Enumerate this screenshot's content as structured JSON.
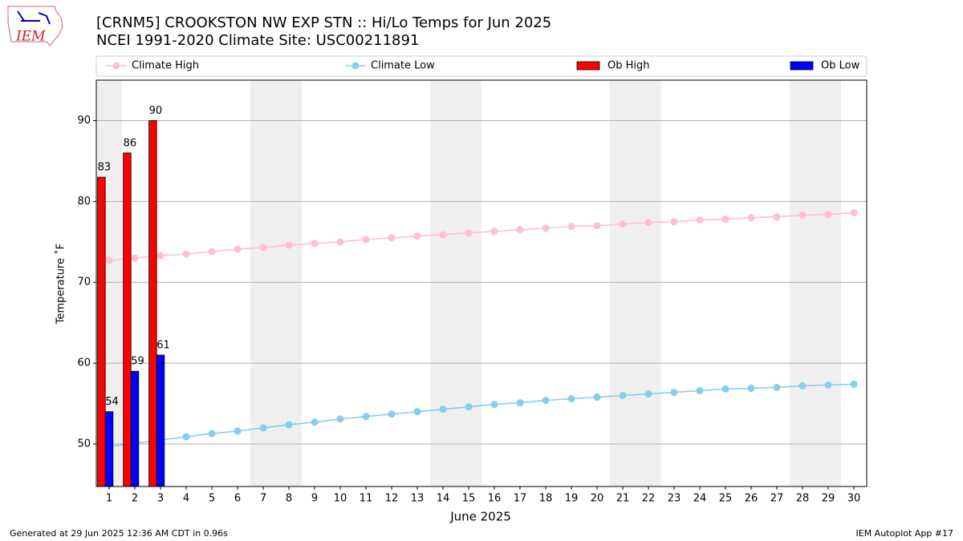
{
  "chart_data": {
    "type": "bar",
    "title": "[CRNM5] CROOKSTON NW EXP STN :: Hi/Lo Temps for Jun 2025",
    "subtitle": "NCEI 1991-2020 Climate Site: USC00211891",
    "xlabel": "June 2025",
    "ylabel": "Temperature ˚F",
    "logo_text": "IEM",
    "footer_left": "Generated at 29 Jun 2025 12:36 AM CDT in 0.96s",
    "footer_right": "IEM Autoplot App #17",
    "x": [
      1,
      2,
      3,
      4,
      5,
      6,
      7,
      8,
      9,
      10,
      11,
      12,
      13,
      14,
      15,
      16,
      17,
      18,
      19,
      20,
      21,
      22,
      23,
      24,
      25,
      26,
      27,
      28,
      29,
      30
    ],
    "xlim": [
      0.5,
      30.5
    ],
    "xticks": [
      1,
      2,
      3,
      4,
      5,
      6,
      7,
      8,
      9,
      10,
      11,
      12,
      13,
      14,
      15,
      16,
      17,
      18,
      19,
      20,
      21,
      22,
      23,
      24,
      25,
      26,
      27,
      28,
      29,
      30
    ],
    "ylim": [
      44.75,
      95
    ],
    "yticks": [
      50,
      60,
      70,
      80,
      90
    ],
    "grid": true,
    "shaded_ranges": [
      [
        0.5,
        1.5
      ],
      [
        6.5,
        8.5
      ],
      [
        13.5,
        15.5
      ],
      [
        20.5,
        22.5
      ],
      [
        27.5,
        29.5
      ]
    ],
    "shade_color": "#efefef",
    "series": [
      {
        "name": "Climate High",
        "type": "line",
        "color": "#ffc0cb",
        "values": [
          72.7,
          73.0,
          73.3,
          73.5,
          73.8,
          74.1,
          74.3,
          74.6,
          74.8,
          75.0,
          75.3,
          75.5,
          75.7,
          75.9,
          76.1,
          76.3,
          76.5,
          76.7,
          76.9,
          77.0,
          77.2,
          77.4,
          77.5,
          77.7,
          77.8,
          78.0,
          78.1,
          78.3,
          78.4,
          78.6
        ]
      },
      {
        "name": "Climate Low",
        "type": "line",
        "color": "#87ceeb",
        "values": [
          49.7,
          50.1,
          50.5,
          50.9,
          51.3,
          51.6,
          52.0,
          52.4,
          52.7,
          53.1,
          53.4,
          53.7,
          54.0,
          54.3,
          54.6,
          54.9,
          55.1,
          55.4,
          55.6,
          55.8,
          56.0,
          56.2,
          56.4,
          56.6,
          56.8,
          56.9,
          57.0,
          57.2,
          57.3,
          57.4
        ]
      },
      {
        "name": "Ob High",
        "type": "bar",
        "color": "#ff0000",
        "values": [
          83,
          86,
          90,
          null,
          null,
          null,
          null,
          null,
          null,
          null,
          null,
          null,
          null,
          null,
          null,
          null,
          null,
          null,
          null,
          null,
          null,
          null,
          null,
          null,
          null,
          null,
          null,
          null,
          null,
          null
        ]
      },
      {
        "name": "Ob Low",
        "type": "bar",
        "color": "#0000ff",
        "values": [
          54,
          59,
          61,
          null,
          null,
          null,
          null,
          null,
          null,
          null,
          null,
          null,
          null,
          null,
          null,
          null,
          null,
          null,
          null,
          null,
          null,
          null,
          null,
          null,
          null,
          null,
          null,
          null,
          null,
          null
        ]
      }
    ]
  }
}
